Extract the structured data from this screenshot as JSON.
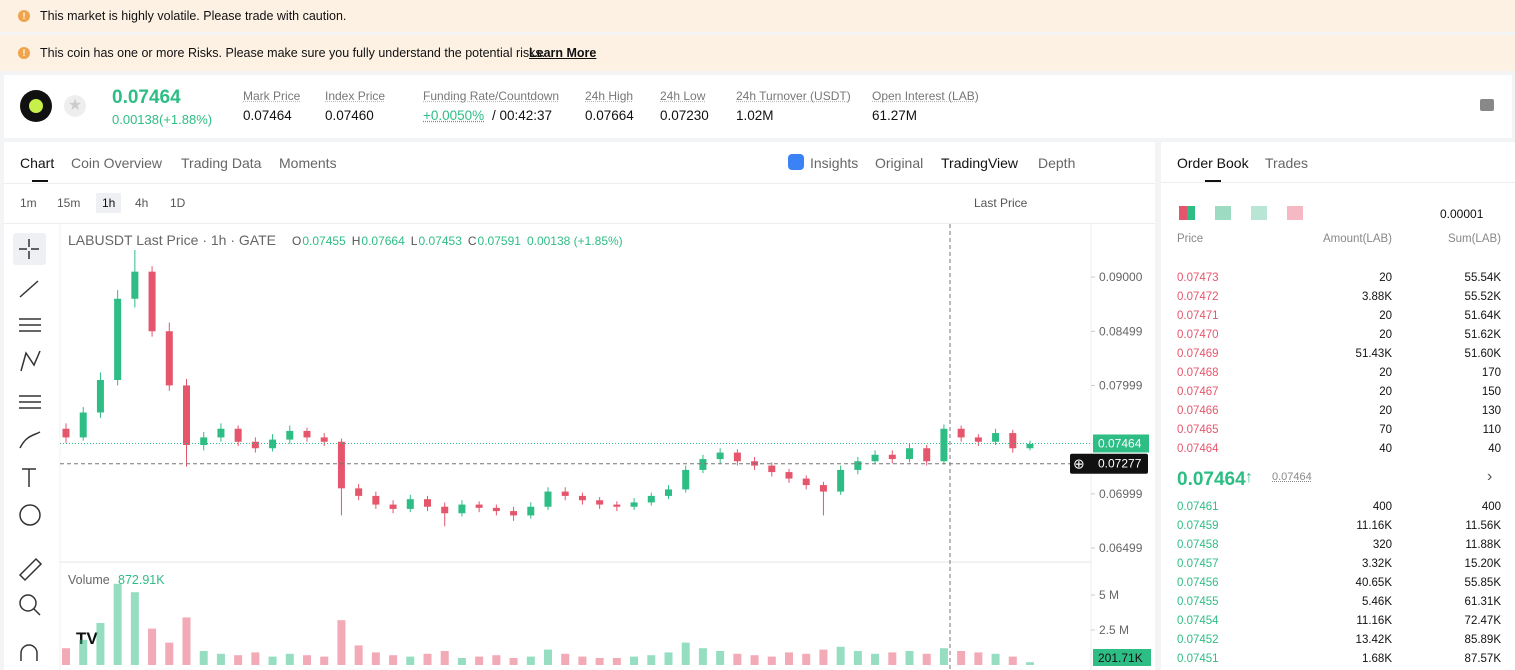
{
  "banners": [
    "This market is highly volatile. Please trade with caution.",
    "This coin has one or more Risks. Please make sure you fully understand the potential risks."
  ],
  "learn_more": "Learn More",
  "ticker": {
    "price": "0.07464",
    "change": "0.00138(+1.88%)",
    "stats": [
      {
        "label": "Mark Price",
        "value": "0.07464"
      },
      {
        "label": "Index Price",
        "value": "0.07460"
      },
      {
        "label": "Funding Rate/Countdown",
        "value": "+0.0050%",
        "extra": "/ 00:42:37"
      },
      {
        "label": "24h High",
        "value": "0.07664"
      },
      {
        "label": "24h Low",
        "value": "0.07230"
      },
      {
        "label": "24h Turnover (USDT)",
        "value": "1.02M"
      },
      {
        "label": "Open Interest (LAB)",
        "value": "61.27M"
      }
    ]
  },
  "tabs": [
    "Chart",
    "Coin Overview",
    "Trading Data",
    "Moments"
  ],
  "view_options": [
    "Insights",
    "Original",
    "TradingView",
    "Depth"
  ],
  "intervals": [
    "1m",
    "15m",
    "1h",
    "4h",
    "1D"
  ],
  "price_type": "Last Price",
  "chart_data": {
    "type": "candlestick",
    "symbol": "LABUSDT Last Price · 1h · GATE",
    "ohlc_legend": [
      {
        "key": "O",
        "value": "0.07455"
      },
      {
        "key": "H",
        "value": "0.07664"
      },
      {
        "key": "L",
        "value": "0.07453"
      },
      {
        "key": "C",
        "value": "0.07591"
      }
    ],
    "legend_change": "0.00138 (+1.85%)",
    "up_color": "#2ebd85",
    "down_color": "#e5566d",
    "ylim": [
      0.0637,
      0.0949
    ],
    "yticks": [
      {
        "value": 0.09,
        "label": "0.09000"
      },
      {
        "value": 0.08499,
        "label": "0.08499"
      },
      {
        "value": 0.07999,
        "label": "0.07999"
      },
      {
        "value": 0.06999,
        "label": "0.06999"
      },
      {
        "value": 0.06499,
        "label": "0.06499"
      }
    ],
    "last_price": {
      "value": 0.07464,
      "label": "0.07464"
    },
    "crosshair": {
      "value": 0.07277,
      "label": "0.07277"
    },
    "candles": [
      [
        0.076,
        0.0765,
        0.0747,
        0.0752
      ],
      [
        0.0752,
        0.078,
        0.0749,
        0.0775
      ],
      [
        0.0775,
        0.0812,
        0.077,
        0.0805
      ],
      [
        0.0805,
        0.0888,
        0.08,
        0.088
      ],
      [
        0.088,
        0.0925,
        0.0872,
        0.0905
      ],
      [
        0.0905,
        0.091,
        0.0845,
        0.085
      ],
      [
        0.085,
        0.0858,
        0.0795,
        0.08
      ],
      [
        0.08,
        0.0806,
        0.0725,
        0.0745
      ],
      [
        0.0745,
        0.0757,
        0.074,
        0.0752
      ],
      [
        0.0752,
        0.0765,
        0.0748,
        0.076
      ],
      [
        0.076,
        0.0763,
        0.0744,
        0.0748
      ],
      [
        0.0748,
        0.0752,
        0.0738,
        0.0742
      ],
      [
        0.0742,
        0.0755,
        0.0739,
        0.075
      ],
      [
        0.075,
        0.0763,
        0.0746,
        0.0758
      ],
      [
        0.0758,
        0.0761,
        0.0748,
        0.0752
      ],
      [
        0.0752,
        0.0756,
        0.0744,
        0.0748
      ],
      [
        0.0748,
        0.0751,
        0.068,
        0.0705
      ],
      [
        0.0705,
        0.0709,
        0.0694,
        0.0698
      ],
      [
        0.0698,
        0.0702,
        0.0686,
        0.069
      ],
      [
        0.069,
        0.0694,
        0.0682,
        0.0686
      ],
      [
        0.0686,
        0.0699,
        0.0683,
        0.0695
      ],
      [
        0.0695,
        0.0698,
        0.0684,
        0.0688
      ],
      [
        0.0688,
        0.0692,
        0.067,
        0.0682
      ],
      [
        0.0682,
        0.0694,
        0.0679,
        0.069
      ],
      [
        0.069,
        0.0693,
        0.0683,
        0.0687
      ],
      [
        0.0687,
        0.069,
        0.068,
        0.0684
      ],
      [
        0.0684,
        0.0688,
        0.0675,
        0.068
      ],
      [
        0.068,
        0.0692,
        0.0677,
        0.0688
      ],
      [
        0.0688,
        0.0706,
        0.0685,
        0.0702
      ],
      [
        0.0702,
        0.0706,
        0.0694,
        0.0698
      ],
      [
        0.0698,
        0.0701,
        0.069,
        0.0694
      ],
      [
        0.0694,
        0.0697,
        0.0686,
        0.069
      ],
      [
        0.069,
        0.0693,
        0.0684,
        0.0688
      ],
      [
        0.0688,
        0.0696,
        0.0685,
        0.0692
      ],
      [
        0.0692,
        0.0701,
        0.0689,
        0.0698
      ],
      [
        0.0698,
        0.0708,
        0.0695,
        0.0704
      ],
      [
        0.0704,
        0.0726,
        0.0701,
        0.0722
      ],
      [
        0.0722,
        0.0736,
        0.0719,
        0.0732
      ],
      [
        0.0732,
        0.0742,
        0.0728,
        0.0738
      ],
      [
        0.0738,
        0.0741,
        0.0726,
        0.073
      ],
      [
        0.073,
        0.0734,
        0.0722,
        0.0726
      ],
      [
        0.0726,
        0.0729,
        0.0716,
        0.072
      ],
      [
        0.072,
        0.0723,
        0.071,
        0.0714
      ],
      [
        0.0714,
        0.0717,
        0.0704,
        0.0708
      ],
      [
        0.0708,
        0.0711,
        0.068,
        0.0702
      ],
      [
        0.0702,
        0.0726,
        0.0699,
        0.0722
      ],
      [
        0.0722,
        0.0734,
        0.0718,
        0.073
      ],
      [
        0.073,
        0.074,
        0.0727,
        0.0736
      ],
      [
        0.0736,
        0.074,
        0.0728,
        0.0732
      ],
      [
        0.0732,
        0.0746,
        0.0729,
        0.0742
      ],
      [
        0.0742,
        0.0745,
        0.0726,
        0.073
      ],
      [
        0.073,
        0.0764,
        0.0727,
        0.076
      ],
      [
        0.076,
        0.0763,
        0.0748,
        0.0752
      ],
      [
        0.0752,
        0.0755,
        0.0744,
        0.0748
      ],
      [
        0.0748,
        0.076,
        0.0745,
        0.0756
      ],
      [
        0.0756,
        0.0759,
        0.0738,
        0.0742
      ],
      [
        0.0742,
        0.0749,
        0.074,
        0.0746
      ]
    ],
    "volume_label": "Volume",
    "volume_value": "872.91K",
    "last_volume": "201.71K",
    "volume_ylim": [
      0,
      7000000
    ],
    "volume_yticks": [
      {
        "value": 5000000,
        "label": "5 M"
      },
      {
        "value": 2500000,
        "label": "2.5 M"
      }
    ],
    "volumes": [
      1200000,
      1800000,
      3000000,
      5800000,
      5200000,
      2600000,
      1600000,
      3400000,
      1000000,
      800000,
      700000,
      900000,
      600000,
      800000,
      700000,
      600000,
      3200000,
      1400000,
      900000,
      700000,
      600000,
      800000,
      1000000,
      500000,
      600000,
      700000,
      500000,
      600000,
      1100000,
      800000,
      600000,
      500000,
      500000,
      600000,
      700000,
      900000,
      1600000,
      1200000,
      1000000,
      800000,
      700000,
      600000,
      900000,
      800000,
      1100000,
      1300000,
      1000000,
      800000,
      900000,
      1000000,
      800000,
      1200000,
      1000000,
      900000,
      800000,
      600000,
      200000
    ]
  },
  "order_book": {
    "tabs": [
      "Order Book",
      "Trades"
    ],
    "precision": "0.00001",
    "columns": [
      "Price",
      "Amount(LAB)",
      "Sum(LAB)"
    ],
    "asks": [
      [
        "0.07473",
        "20",
        "55.54K"
      ],
      [
        "0.07472",
        "3.88K",
        "55.52K"
      ],
      [
        "0.07471",
        "20",
        "51.64K"
      ],
      [
        "0.07470",
        "20",
        "51.62K"
      ],
      [
        "0.07469",
        "51.43K",
        "51.60K"
      ],
      [
        "0.07468",
        "20",
        "170"
      ],
      [
        "0.07467",
        "20",
        "150"
      ],
      [
        "0.07466",
        "20",
        "130"
      ],
      [
        "0.07465",
        "70",
        "110"
      ],
      [
        "0.07464",
        "40",
        "40"
      ]
    ],
    "mid_price": "0.07464",
    "mark_price": "0.07464",
    "bids": [
      [
        "0.07461",
        "400",
        "400"
      ],
      [
        "0.07459",
        "11.16K",
        "11.56K"
      ],
      [
        "0.07458",
        "320",
        "11.88K"
      ],
      [
        "0.07457",
        "3.32K",
        "15.20K"
      ],
      [
        "0.07456",
        "40.65K",
        "55.85K"
      ],
      [
        "0.07455",
        "5.46K",
        "61.31K"
      ],
      [
        "0.07454",
        "11.16K",
        "72.47K"
      ],
      [
        "0.07452",
        "13.42K",
        "85.89K"
      ],
      [
        "0.07451",
        "1.68K",
        "87.57K"
      ]
    ]
  }
}
